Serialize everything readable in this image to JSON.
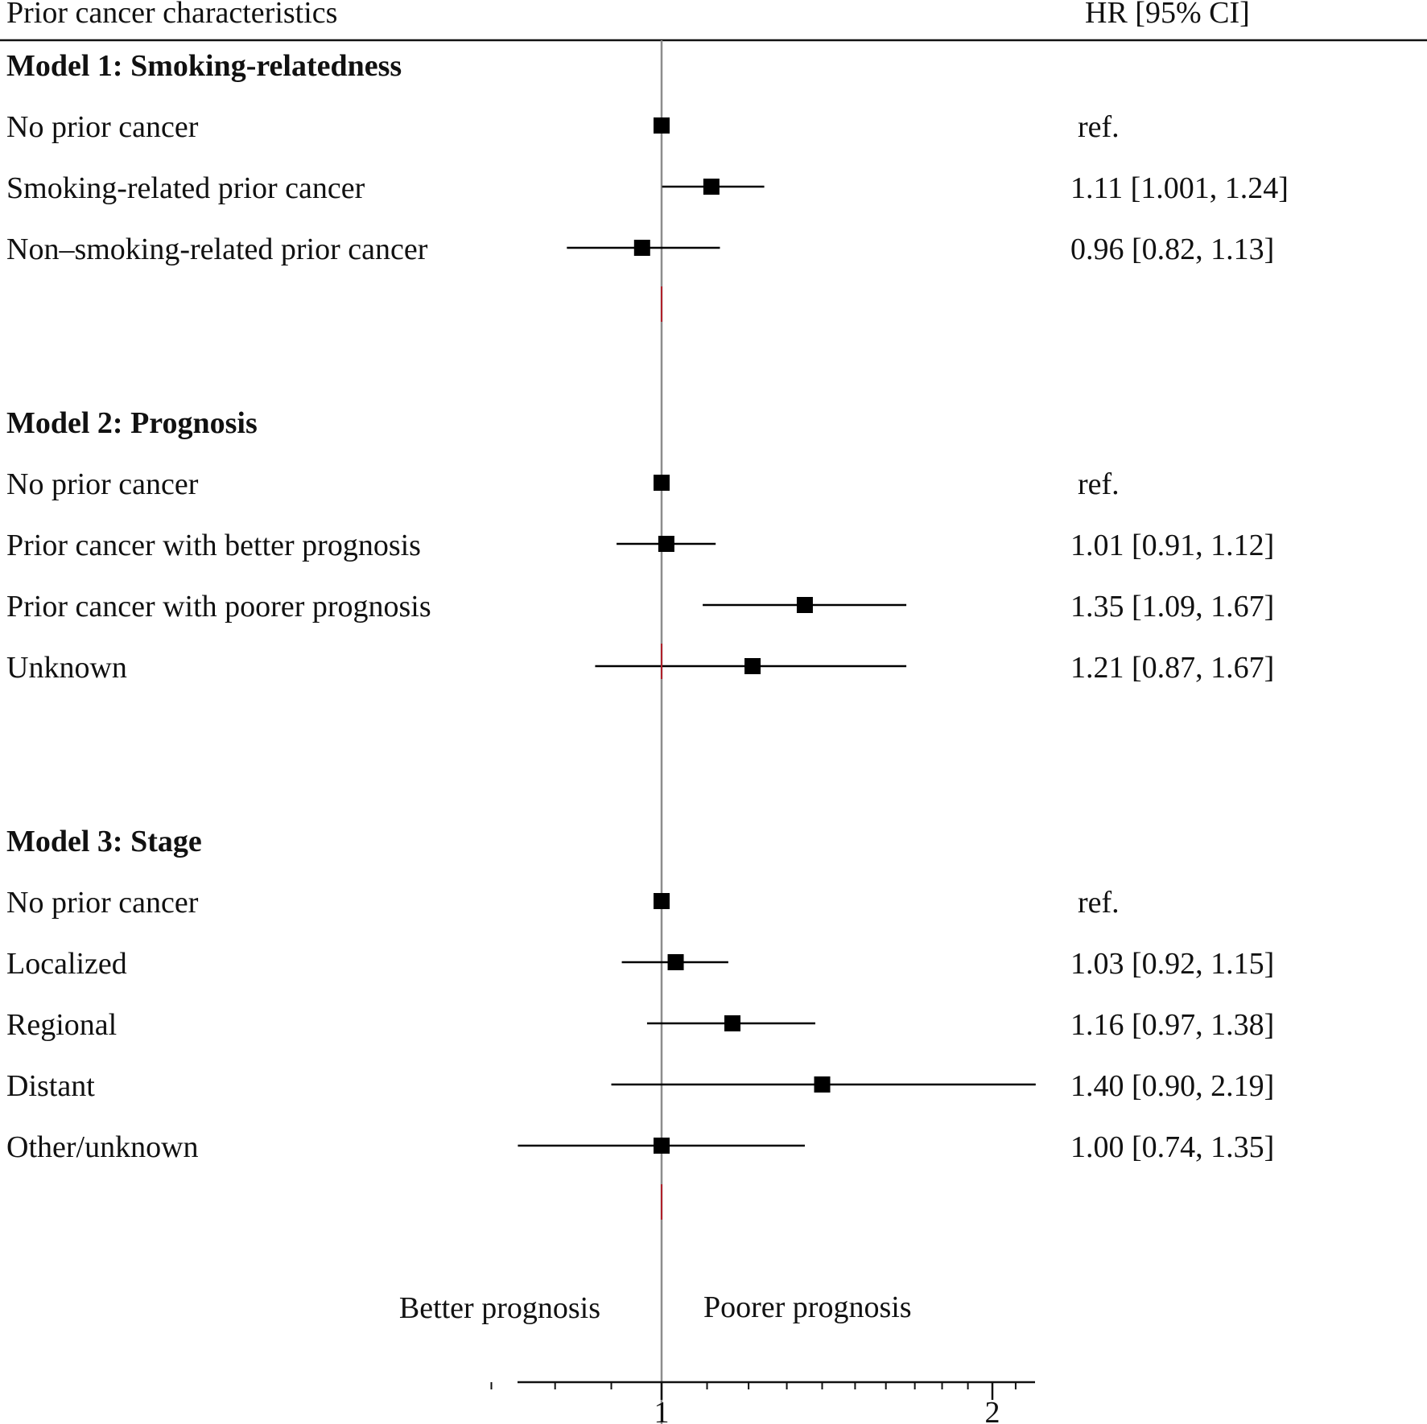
{
  "chart_data": {
    "type": "forest",
    "header_left": "Prior cancer characteristics",
    "header_right": "HR [95% CI]",
    "xscale": "log",
    "xlim": [
      0.65,
      2.2
    ],
    "reference_value": 1,
    "x_tick_labels": [
      {
        "value": 1,
        "label": "1"
      },
      {
        "value": 2,
        "label": "2"
      }
    ],
    "x_minor_ticks": [
      0.7,
      0.8,
      0.9,
      1.1,
      1.2,
      1.3,
      1.4,
      1.5,
      1.6,
      1.7,
      1.8,
      1.9,
      2.1
    ],
    "direction_left": "Better prognosis",
    "direction_right": "Poorer prognosis",
    "models": [
      {
        "title": "Model 1: Smoking-relatedness",
        "rows": [
          {
            "label": "No prior cancer",
            "hr": 1.0,
            "lo": null,
            "hi": null,
            "text": "ref."
          },
          {
            "label": "Smoking-related prior cancer",
            "hr": 1.11,
            "lo": 1.001,
            "hi": 1.24,
            "text": "1.11 [1.001, 1.24]"
          },
          {
            "label": "Non–smoking-related prior cancer",
            "hr": 0.96,
            "lo": 0.82,
            "hi": 1.13,
            "text": "0.96 [0.82,  1.13]"
          }
        ]
      },
      {
        "title": "Model 2: Prognosis",
        "rows": [
          {
            "label": "No prior cancer",
            "hr": 1.0,
            "lo": null,
            "hi": null,
            "text": "ref."
          },
          {
            "label": "Prior cancer with better prognosis",
            "hr": 1.01,
            "lo": 0.91,
            "hi": 1.12,
            "text": "1.01 [0.91,  1.12]"
          },
          {
            "label": "Prior cancer with poorer prognosis",
            "hr": 1.35,
            "lo": 1.09,
            "hi": 1.67,
            "text": "1.35 [1.09,  1.67]"
          },
          {
            "label": "Unknown",
            "hr": 1.21,
            "lo": 0.87,
            "hi": 1.67,
            "text": "1.21 [0.87,  1.67]"
          }
        ]
      },
      {
        "title": "Model 3: Stage",
        "rows": [
          {
            "label": "No prior cancer",
            "hr": 1.0,
            "lo": null,
            "hi": null,
            "text": "ref."
          },
          {
            "label": "Localized",
            "hr": 1.03,
            "lo": 0.92,
            "hi": 1.15,
            "text": "1.03 [0.92,  1.15]"
          },
          {
            "label": "Regional",
            "hr": 1.16,
            "lo": 0.97,
            "hi": 1.38,
            "text": "1.16 [0.97,  1.38]"
          },
          {
            "label": "Distant",
            "hr": 1.4,
            "lo": 0.9,
            "hi": 2.19,
            "text": "1.40 [0.90,  2.19]"
          },
          {
            "label": "Other/unknown",
            "hr": 1.0,
            "lo": 0.74,
            "hi": 1.35,
            "text": "1.00 [0.74,  1.35]"
          }
        ]
      }
    ],
    "colors": {
      "text": "#111111",
      "marker": "#000000",
      "reference_line": "#8c8c8c",
      "separator": "#b0202a"
    }
  }
}
